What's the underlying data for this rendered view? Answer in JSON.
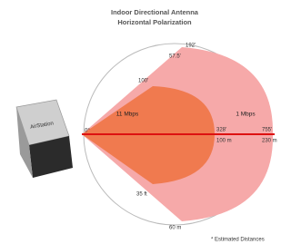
{
  "header": {
    "title": "Indoor Directional Antenna",
    "subtitle": "Horizontal Polarization"
  },
  "device": {
    "label": "AirStation"
  },
  "zones": {
    "inner": "11 Mbps",
    "outer": "1 Mbps"
  },
  "labels": {
    "angle": "0°",
    "top_outer": "192'",
    "top_mid": "57.5'",
    "top_inner": "100'",
    "inner_ft": "328'",
    "inner_m": "100 m",
    "outer_ft": "755'",
    "outer_m": "230 m",
    "bottom_ft": "35 ft",
    "bottom_m": "60 m"
  },
  "footnote": "* Estimated Distances"
}
